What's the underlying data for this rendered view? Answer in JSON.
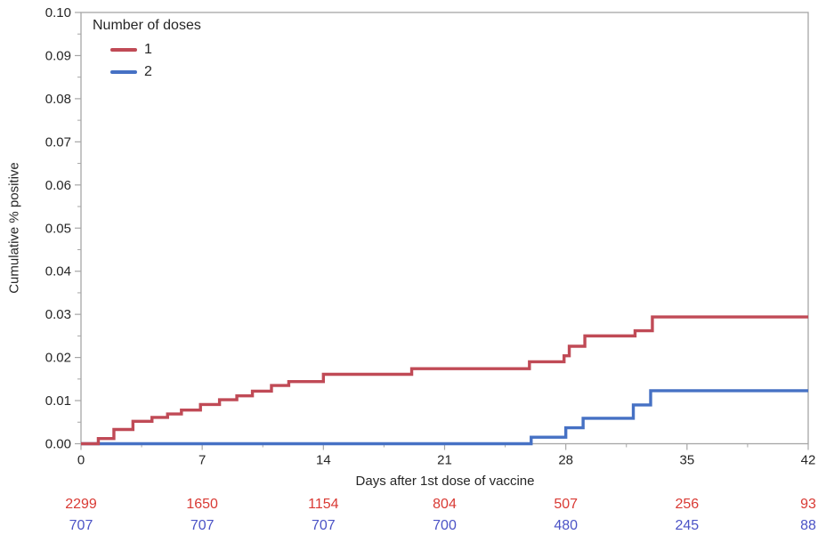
{
  "chart_data": {
    "type": "line",
    "subtype": "step-cumulative-incidence",
    "title": "",
    "xlabel": "Days after 1st dose of vaccine",
    "ylabel": "Cumulative % positive",
    "xlim": [
      0,
      42
    ],
    "ylim": [
      0,
      0.1
    ],
    "x_ticks": [
      0,
      7,
      14,
      21,
      28,
      35,
      42
    ],
    "x_tick_labels": [
      "0",
      "7",
      "14",
      "21",
      "28",
      "35",
      "42"
    ],
    "x_minor_ticks": [
      3.5,
      10.5,
      17.5,
      24.5,
      31.5,
      38.5
    ],
    "y_ticks": [
      0,
      0.01,
      0.02,
      0.03,
      0.04,
      0.05,
      0.06,
      0.07,
      0.08,
      0.09,
      0.1
    ],
    "y_tick_labels": [
      "0.00",
      "0.01",
      "0.02",
      "0.03",
      "0.04",
      "0.05",
      "0.06",
      "0.07",
      "0.08",
      "0.09",
      "0.10"
    ],
    "y_minor_ticks": [
      0.005,
      0.015,
      0.025,
      0.035,
      0.045,
      0.055,
      0.065,
      0.075,
      0.085,
      0.095
    ],
    "grid": false,
    "axis_color": "#a6a6a6",
    "text_color": "#262626",
    "legend": {
      "title": "Number of doses",
      "position": "top-left-inside",
      "entries": [
        {
          "label": "1",
          "color": "#c04a56"
        },
        {
          "label": "2",
          "color": "#4671c4"
        }
      ]
    },
    "series": [
      {
        "name": "1",
        "color": "#c04a56",
        "start": [
          0,
          0
        ],
        "end_x": 42,
        "steps": [
          [
            1.0,
            0.0012
          ],
          [
            1.9,
            0.0033
          ],
          [
            3.0,
            0.0052
          ],
          [
            4.1,
            0.0061
          ],
          [
            5.0,
            0.0069
          ],
          [
            5.8,
            0.0078
          ],
          [
            6.9,
            0.0091
          ],
          [
            8.0,
            0.0102
          ],
          [
            9.0,
            0.0111
          ],
          [
            9.9,
            0.0122
          ],
          [
            11.0,
            0.0135
          ],
          [
            12.0,
            0.0144
          ],
          [
            14.0,
            0.0161
          ],
          [
            19.1,
            0.0174
          ],
          [
            25.9,
            0.019
          ],
          [
            27.9,
            0.0204
          ],
          [
            28.2,
            0.0226
          ],
          [
            29.1,
            0.025
          ],
          [
            32.0,
            0.0262
          ],
          [
            33.0,
            0.0294
          ]
        ]
      },
      {
        "name": "2",
        "color": "#4671c4",
        "start": [
          0,
          0
        ],
        "end_x": 42,
        "steps": [
          [
            26.0,
            0.0015
          ],
          [
            28.0,
            0.0037
          ],
          [
            29.0,
            0.0059
          ],
          [
            31.9,
            0.009
          ],
          [
            32.9,
            0.0123
          ]
        ]
      }
    ],
    "risk_table": {
      "rows": [
        {
          "series": "1",
          "color": "#d93a34",
          "values": [
            "2299",
            "1650",
            "1154",
            "804",
            "507",
            "256",
            "93"
          ]
        },
        {
          "series": "2",
          "color": "#4b53c6",
          "values": [
            "707",
            "707",
            "707",
            "700",
            "480",
            "245",
            "88"
          ]
        }
      ]
    }
  }
}
